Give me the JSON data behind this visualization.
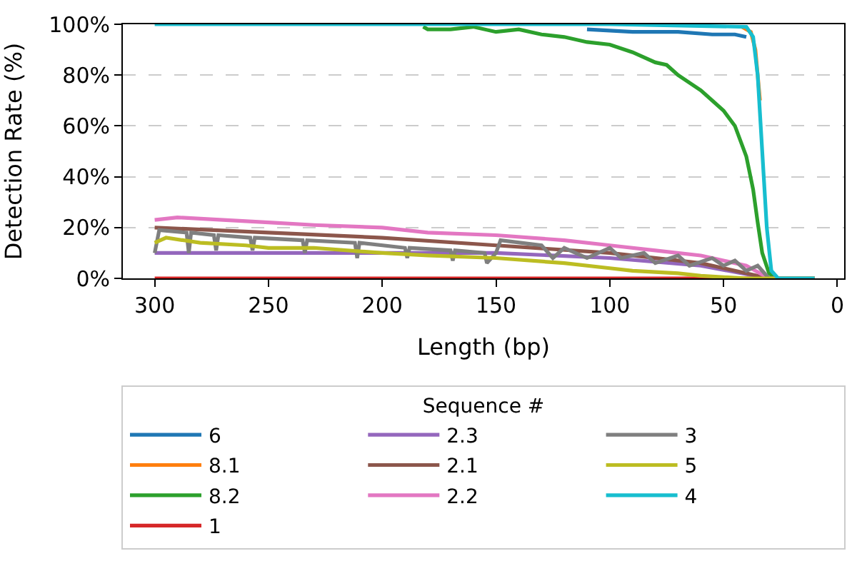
{
  "chart_data": {
    "type": "line",
    "xlabel": "Length (bp)",
    "ylabel": "Detection Rate (%)",
    "legend_title": "Sequence #",
    "xlim": [
      314,
      -3
    ],
    "xticks": [
      300,
      250,
      200,
      150,
      100,
      50,
      0
    ],
    "ylim": [
      0,
      100
    ],
    "yticks": [
      {
        "value": 0,
        "label": "0%"
      },
      {
        "value": 20,
        "label": "20%"
      },
      {
        "value": 40,
        "label": "40%"
      },
      {
        "value": 60,
        "label": "60%"
      },
      {
        "value": 80,
        "label": "80%"
      },
      {
        "value": 100,
        "label": "100%"
      }
    ],
    "grid": "y",
    "legend": "bottom",
    "line_style": "solid",
    "marker": "none",
    "series": [
      {
        "name": "6",
        "color": "#1f77b4",
        "x": [
          110,
          90,
          70,
          55,
          45,
          40
        ],
        "values": [
          98,
          97,
          97,
          96,
          96,
          95
        ]
      },
      {
        "name": "8.1",
        "color": "#ff7f0e",
        "x": [
          42,
          38,
          36,
          34
        ],
        "values": [
          99,
          97,
          90,
          70
        ]
      },
      {
        "name": "8.2",
        "color": "#2ca02c",
        "x": [
          182,
          180,
          170,
          160,
          150,
          140,
          130,
          120,
          110,
          100,
          90,
          80,
          75,
          70,
          65,
          60,
          55,
          50,
          45,
          40,
          37,
          35,
          33,
          30,
          27,
          20,
          10
        ],
        "values": [
          99,
          98,
          98,
          99,
          97,
          98,
          96,
          95,
          93,
          92,
          89,
          85,
          84,
          80,
          77,
          74,
          70,
          66,
          60,
          48,
          35,
          22,
          10,
          2,
          0,
          0,
          0
        ]
      },
      {
        "name": "1",
        "color": "#d62728",
        "x": [
          300,
          10
        ],
        "values": [
          0,
          0
        ]
      },
      {
        "name": "2.3",
        "color": "#9467bd",
        "x": [
          300,
          150,
          100,
          60,
          30,
          10
        ],
        "values": [
          10,
          10,
          8,
          5,
          0,
          0
        ]
      },
      {
        "name": "2.1",
        "color": "#8c564b",
        "x": [
          300,
          250,
          200,
          150,
          100,
          60,
          30,
          10
        ],
        "values": [
          20,
          18,
          16,
          13,
          10,
          6,
          0,
          0
        ]
      },
      {
        "name": "2.2",
        "color": "#e377c2",
        "x": [
          300,
          290,
          270,
          250,
          230,
          200,
          180,
          150,
          120,
          100,
          80,
          60,
          40,
          30,
          10
        ],
        "values": [
          23,
          24,
          23,
          22,
          21,
          20,
          18,
          17,
          15,
          13,
          11,
          9,
          5,
          0,
          0
        ]
      },
      {
        "name": "3",
        "color": "#7f7f7f",
        "x": [
          300,
          298,
          286,
          285,
          284,
          274,
          273,
          272,
          258,
          257,
          256,
          235,
          234,
          233,
          212,
          211,
          210,
          190,
          189,
          188,
          170,
          169,
          168,
          155,
          154,
          150,
          148,
          130,
          125,
          120,
          110,
          100,
          95,
          85,
          80,
          70,
          65,
          55,
          50,
          45,
          40,
          35,
          30,
          10
        ],
        "values": [
          10,
          19,
          18,
          10,
          18,
          17,
          11,
          17,
          16,
          11,
          16,
          15,
          10,
          15,
          14,
          8,
          14,
          12,
          8,
          12,
          11,
          7,
          11,
          10,
          6,
          10,
          15,
          13,
          8,
          12,
          8,
          12,
          8,
          10,
          6,
          9,
          5,
          8,
          5,
          7,
          3,
          5,
          0,
          0
        ]
      },
      {
        "name": "5",
        "color": "#bcbd22",
        "x": [
          300,
          295,
          280,
          260,
          250,
          230,
          200,
          180,
          150,
          120,
          100,
          90,
          70,
          60,
          40,
          30,
          10
        ],
        "values": [
          14,
          16,
          14,
          13,
          12,
          12,
          10,
          9,
          8,
          6,
          4,
          3,
          2,
          1,
          0,
          0,
          0
        ]
      },
      {
        "name": "4",
        "color": "#17becf",
        "x": [
          300,
          100,
          40,
          37,
          35,
          33,
          31,
          29,
          26,
          20,
          10
        ],
        "values": [
          100,
          100,
          99,
          95,
          80,
          50,
          20,
          3,
          0,
          0,
          0
        ]
      }
    ]
  }
}
